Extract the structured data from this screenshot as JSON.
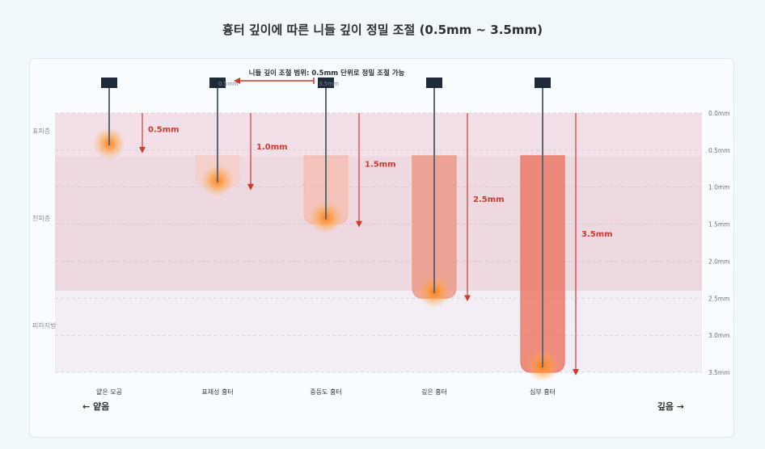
{
  "title": "흉터 깊이에 따른 니들 깊이 정밀 조절 (0.5mm ~ 3.5mm)",
  "scale": {
    "max_depth_mm": 3.5,
    "ticks": [
      {
        "value": 0.0,
        "label": "0.0mm"
      },
      {
        "value": 0.5,
        "label": "0.5mm"
      },
      {
        "value": 1.0,
        "label": "1.0mm"
      },
      {
        "value": 1.5,
        "label": "1.5mm"
      },
      {
        "value": 2.0,
        "label": "2.0mm"
      },
      {
        "value": 2.5,
        "label": "2.5mm"
      },
      {
        "value": 3.0,
        "label": "3.0mm"
      },
      {
        "value": 3.5,
        "label": "3.5mm"
      }
    ]
  },
  "layers": [
    {
      "label": "표피층",
      "from": 0.0,
      "to": 0.58,
      "color": "#f2dfe8"
    },
    {
      "label": "진피층",
      "from": 0.58,
      "to": 2.4,
      "color": "#eed9e1"
    },
    {
      "label": "피하지방",
      "from": 2.4,
      "to": 3.5,
      "color": "#f3eef5"
    }
  ],
  "annotation": {
    "text": "니들 깊이 조절 범위: 0.5mm 단위로 정밀 조절 가능",
    "from_label": "0.5mm",
    "to_label": "3.5mm"
  },
  "needles": [
    {
      "label": "얕은 모공",
      "depth": 0.5,
      "depth_label": "0.5mm",
      "scar_color": null
    },
    {
      "label": "표재성 흉터",
      "depth": 1.0,
      "depth_label": "1.0mm",
      "scar_color": "#f5cfc8"
    },
    {
      "label": "중등도 흉터",
      "depth": 1.5,
      "depth_label": "1.5mm",
      "scar_color": "#f3bdb0"
    },
    {
      "label": "깊은 흉터",
      "depth": 2.5,
      "depth_label": "2.5mm",
      "scar_color": "#ec9a88"
    },
    {
      "label": "심부 흉터",
      "depth": 3.5,
      "depth_label": "3.5mm",
      "scar_color": "#ec7a68"
    }
  ],
  "axis_labels": {
    "shallow": "← 얕음",
    "deep": "깊음 →"
  },
  "colors": {
    "arrow": "#d03a2b",
    "needle": "#5a6775",
    "needle_head": "#1e2a3a",
    "glow": "#ff8a1e"
  }
}
